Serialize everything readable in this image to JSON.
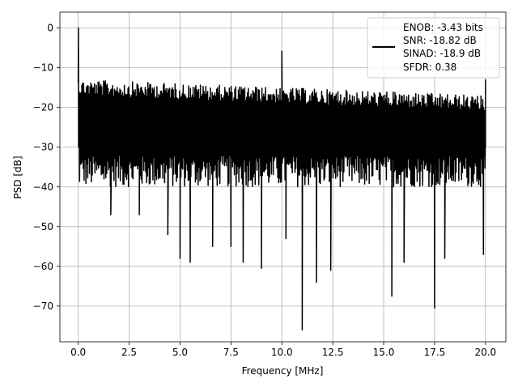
{
  "chart_data": {
    "type": "line",
    "title": "",
    "xlabel": "Frequency [MHz]",
    "ylabel": "PSD [dB]",
    "xlim": [
      -0.9,
      21.0
    ],
    "ylim": [
      -79,
      4
    ],
    "xticks": [
      0.0,
      2.5,
      5.0,
      7.5,
      10.0,
      12.5,
      15.0,
      17.5,
      20.0
    ],
    "xtick_labels": [
      "0.0",
      "2.5",
      "5.0",
      "7.5",
      "10.0",
      "12.5",
      "15.0",
      "17.5",
      "20.0"
    ],
    "yticks": [
      0,
      -10,
      -20,
      -30,
      -40,
      -50,
      -60,
      -70
    ],
    "ytick_labels": [
      "0",
      "−10",
      "−20",
      "−30",
      "−40",
      "−50",
      "−60",
      "−70"
    ],
    "grid": true,
    "legend": {
      "placement": "top-right",
      "entries": [
        "ENOB: -3.43 bits",
        "SNR: -18.82 dB",
        "SINAD: -18.9 dB",
        "SFDR: 0.38"
      ]
    },
    "series": [
      {
        "color": "#000000",
        "description_values": {
          "peak_at_0MHz_dB": 0,
          "tone_at_10MHz_dB": -5.8,
          "upper_envelope_start_dB": -13,
          "upper_envelope_end_dB": -17,
          "lower_envelope_typ_dB": -40
        },
        "dips": [
          {
            "x": 1.6,
            "y": -47
          },
          {
            "x": 3.0,
            "y": -47
          },
          {
            "x": 4.4,
            "y": -52
          },
          {
            "x": 5.0,
            "y": -58
          },
          {
            "x": 5.5,
            "y": -59
          },
          {
            "x": 6.6,
            "y": -55
          },
          {
            "x": 7.5,
            "y": -55
          },
          {
            "x": 8.1,
            "y": -59
          },
          {
            "x": 9.0,
            "y": -60.5
          },
          {
            "x": 10.2,
            "y": -53
          },
          {
            "x": 11.0,
            "y": -76
          },
          {
            "x": 11.7,
            "y": -64
          },
          {
            "x": 12.4,
            "y": -61
          },
          {
            "x": 15.4,
            "y": -67.5
          },
          {
            "x": 16.0,
            "y": -59
          },
          {
            "x": 17.5,
            "y": -70.5
          },
          {
            "x": 18.0,
            "y": -58
          },
          {
            "x": 19.9,
            "y": -57
          }
        ]
      }
    ]
  }
}
